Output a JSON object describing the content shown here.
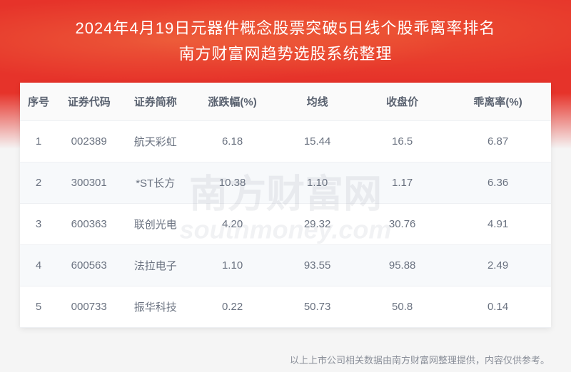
{
  "header": {
    "title_line1": "2024年4月19日元器件概念股票突破5日线个股乖离率排名",
    "title_line2": "南方财富网趋势选股系统整理"
  },
  "table": {
    "columns": [
      "序号",
      "证券代码",
      "证券简称",
      "涨跌幅(%)",
      "均线",
      "收盘价",
      "乖离率(%)"
    ],
    "rows": [
      [
        "1",
        "002389",
        "航天彩虹",
        "6.18",
        "15.44",
        "16.5",
        "6.87"
      ],
      [
        "2",
        "300301",
        "*ST长方",
        "10.38",
        "1.10",
        "1.17",
        "6.36"
      ],
      [
        "3",
        "600363",
        "联创光电",
        "4.20",
        "29.32",
        "30.76",
        "4.91"
      ],
      [
        "4",
        "600563",
        "法拉电子",
        "1.10",
        "93.55",
        "95.88",
        "2.49"
      ],
      [
        "5",
        "000733",
        "振华科技",
        "0.22",
        "50.73",
        "50.8",
        "0.14"
      ]
    ],
    "header_bg": "#fafafa",
    "row_odd_bg": "#ffffff",
    "row_even_bg": "#f7f9fb",
    "border_color": "#eef0f3",
    "text_color": "#6a7280"
  },
  "watermark": {
    "main": "南方财富网",
    "sub": "southmoney.com"
  },
  "footer": {
    "text": "以上上市公司相关数据由南方财富网整理提供，内容仅供参考。"
  },
  "colors": {
    "banner_red": "#e6332a",
    "body_bg": "#f5f5f5",
    "title_color": "#ffffff"
  }
}
